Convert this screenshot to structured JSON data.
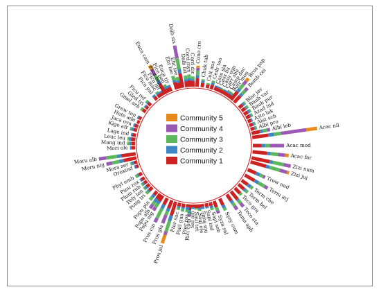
{
  "chart_data": {
    "type": "radial-stacked-bar",
    "title": "",
    "legend": {
      "placement": "center",
      "entries": [
        "Community 5",
        "Community 4",
        "Community 3",
        "Community 2",
        "Community 1"
      ]
    },
    "stack_order": [
      "Community 1",
      "Community 2",
      "Community 3",
      "Community 4",
      "Community 5"
    ],
    "colors": {
      "Community 5": "#e88a1a",
      "Community 4": "#9b59b6",
      "Community 3": "#5cb85c",
      "Community 2": "#3d85c6",
      "Community 1": "#cc2222"
    },
    "value_max": 1.0,
    "ring_color": "#cc2222",
    "categories": [
      {
        "label": "Acac nil",
        "angle": 82,
        "values": [
          0.22,
          0.08,
          0.1,
          0.35,
          0.15
        ]
      },
      {
        "label": "Acac mod",
        "angle": 90,
        "values": [
          0.12,
          0.05,
          0.06,
          0.2,
          0.0
        ]
      },
      {
        "label": "Acac far",
        "angle": 96,
        "values": [
          0.2,
          0.05,
          0.1,
          0.1,
          0.05
        ]
      },
      {
        "label": "Zizi num",
        "angle": 102,
        "values": [
          0.25,
          0.05,
          0.15,
          0.1,
          0.0
        ]
      },
      {
        "label": "Zizi juj",
        "angle": 106,
        "values": [
          0.22,
          0.05,
          0.15,
          0.1,
          0.03
        ]
      },
      {
        "label": "Trew nud",
        "angle": 114,
        "values": [
          0.12,
          0.06,
          0.05,
          0.03,
          0.0
        ]
      },
      {
        "label": "Term arj",
        "angle": 120,
        "values": [
          0.15,
          0.06,
          0.1,
          0.05,
          0.0
        ]
      },
      {
        "label": "Term che",
        "angle": 126,
        "values": [
          0.1,
          0.05,
          0.04,
          0.0,
          0.0
        ]
      },
      {
        "label": "Term bel",
        "angle": 131,
        "values": [
          0.1,
          0.03,
          0.04,
          0.0,
          0.0
        ]
      },
      {
        "label": "Teco gra",
        "angle": 136,
        "values": [
          0.1,
          0.0,
          0.03,
          0.0,
          0.0
        ]
      },
      {
        "label": "Teco sta",
        "angle": 141,
        "values": [
          0.14,
          0.02,
          0.05,
          0.06,
          0.0
        ]
      },
      {
        "label": "Tama aph",
        "angle": 146,
        "values": [
          0.1,
          0.04,
          0.05,
          0.06,
          0.0
        ]
      },
      {
        "label": "Syzy cum",
        "angle": 154,
        "values": [
          0.1,
          0.04,
          0.04,
          0.0,
          0.0
        ]
      },
      {
        "label": "Syza sal",
        "angle": 160,
        "values": [
          0.09,
          0.0,
          0.05,
          0.04,
          0.0
        ]
      },
      {
        "label": "Sapi seb",
        "angle": 164,
        "values": [
          0.05,
          0.03,
          0.03,
          0.0,
          0.0
        ]
      },
      {
        "label": "Sapi ind",
        "angle": 168,
        "values": [
          0.05,
          0.02,
          0.0,
          0.0,
          0.0
        ]
      },
      {
        "label": "Sima mu",
        "angle": 172,
        "values": [
          0.04,
          0.03,
          0.0,
          0.0,
          0.0
        ]
      },
      {
        "label": "Saul ole",
        "angle": 175,
        "values": [
          0.05,
          0.02,
          0.02,
          0.0,
          0.0
        ]
      },
      {
        "label": "Saul tet",
        "angle": 178,
        "values": [
          0.05,
          0.0,
          0.02,
          0.0,
          0.0
        ]
      },
      {
        "label": "Sal alb",
        "angle": 181,
        "values": [
          0.04,
          0.02,
          0.0,
          0.0,
          0.0
        ]
      },
      {
        "label": "Rici com",
        "angle": 184,
        "values": [
          0.08,
          0.04,
          0.02,
          0.03,
          0.0
        ]
      },
      {
        "label": "Psid gua",
        "angle": 190,
        "values": [
          0.05,
          0.02,
          0.04,
          0.0,
          0.0
        ]
      },
      {
        "label": "Pter ros",
        "angle": 186,
        "values": [
          0.04,
          0.04,
          0.03,
          0.0,
          0.0
        ]
      },
      {
        "label": "Pter suc",
        "angle": 194,
        "values": [
          0.05,
          0.02,
          0.03,
          0.0,
          0.0
        ]
      },
      {
        "label": "Pros jul",
        "angle": 198,
        "values": [
          0.2,
          0.08,
          0.15,
          0.05,
          0.12
        ]
      },
      {
        "label": "Pros gla",
        "angle": 202,
        "values": [
          0.12,
          0.04,
          0.06,
          0.12,
          0.0
        ]
      },
      {
        "label": "Pros cin",
        "angle": 207,
        "values": [
          0.1,
          0.06,
          0.15,
          0.06,
          0.0
        ]
      },
      {
        "label": "Popu nig",
        "angle": 212,
        "values": [
          0.09,
          0.04,
          0.06,
          0.05,
          0.0
        ]
      },
      {
        "label": "Popu alb",
        "angle": 215,
        "values": [
          0.08,
          0.05,
          0.05,
          0.06,
          0.0
        ]
      },
      {
        "label": "Popu pin",
        "angle": 219,
        "values": [
          0.06,
          0.04,
          0.05,
          0.0,
          0.0
        ]
      },
      {
        "label": "Pong tri",
        "angle": 225,
        "values": [
          0.06,
          0.02,
          0.04,
          0.0,
          0.0
        ]
      },
      {
        "label": "Poly lon",
        "angle": 229,
        "values": [
          0.05,
          0.03,
          0.02,
          0.0,
          0.0
        ]
      },
      {
        "label": "Plum rub",
        "angle": 233,
        "values": [
          0.05,
          0.02,
          0.02,
          0.0,
          0.0
        ]
      },
      {
        "label": "Pinu rox",
        "angle": 237,
        "values": [
          0.05,
          0.02,
          0.0,
          0.0,
          0.0
        ]
      },
      {
        "label": "Phyl emb",
        "angle": 242,
        "values": [
          0.05,
          0.02,
          0.03,
          0.0,
          0.0
        ]
      },
      {
        "label": "Oroxind",
        "angle": 250,
        "values": [
          0.04,
          0.02,
          0.0,
          0.0,
          0.0
        ]
      },
      {
        "label": "Mora ser",
        "angle": 254,
        "values": [
          0.05,
          0.03,
          0.02,
          0.0,
          0.0
        ]
      },
      {
        "label": "Moru nig",
        "angle": 258,
        "values": [
          0.18,
          0.06,
          0.1,
          0.08,
          0.0
        ]
      },
      {
        "label": "Moru alb",
        "angle": 262,
        "values": [
          0.2,
          0.06,
          0.15,
          0.1,
          0.0
        ]
      },
      {
        "label": "Mori ole",
        "angle": 268,
        "values": [
          0.05,
          0.02,
          0.0,
          0.0,
          0.0
        ]
      },
      {
        "label": "Mang ind",
        "angle": 272,
        "values": [
          0.05,
          0.03,
          0.03,
          0.0,
          0.0
        ]
      },
      {
        "label": "Leuc leu",
        "angle": 276,
        "values": [
          0.06,
          0.03,
          0.02,
          0.0,
          0.0
        ]
      },
      {
        "label": "Lage ind",
        "angle": 280,
        "values": [
          0.05,
          0.02,
          0.0,
          0.0,
          0.0
        ]
      },
      {
        "label": "Kige afr",
        "angle": 285,
        "values": [
          0.05,
          0.03,
          0.02,
          0.0,
          0.0
        ]
      },
      {
        "label": "Jaca ova",
        "angle": 289,
        "values": [
          0.05,
          0.02,
          0.0,
          0.0,
          0.0
        ]
      },
      {
        "label": "Hete ade",
        "angle": 293,
        "values": [
          0.04,
          0.0,
          0.0,
          0.0,
          0.0
        ]
      },
      {
        "label": "Grew ten",
        "angle": 297,
        "values": [
          0.04,
          0.02,
          0.0,
          0.0,
          0.0
        ]
      },
      {
        "label": "Gmel arb",
        "angle": 305,
        "values": [
          0.05,
          0.0,
          0.03,
          0.0,
          0.0
        ]
      },
      {
        "label": "Gled tri",
        "angle": 309,
        "values": [
          0.04,
          0.02,
          0.0,
          0.0,
          0.0
        ]
      },
      {
        "label": "Ficu ref",
        "angle": 313,
        "values": [
          0.05,
          0.02,
          0.02,
          0.0,
          0.0
        ]
      },
      {
        "label": "Ficu pal",
        "angle": 321,
        "values": [
          0.05,
          0.03,
          0.0,
          0.0,
          0.0
        ]
      },
      {
        "label": "Ficu mac",
        "angle": 325,
        "values": [
          0.05,
          0.02,
          0.02,
          0.0,
          0.0
        ]
      },
      {
        "label": "Ficu inf",
        "angle": 328,
        "values": [
          0.05,
          0.02,
          0.0,
          0.0,
          0.0
        ]
      },
      {
        "label": "Ficu ben",
        "angle": 331,
        "values": [
          0.06,
          0.03,
          0.02,
          0.0,
          0.0
        ]
      },
      {
        "label": "Fice ben",
        "angle": 334,
        "values": [
          0.06,
          0.03,
          0.03,
          0.0,
          0.0
        ]
      },
      {
        "label": "Euca tir",
        "angle": 337,
        "values": [
          0.06,
          0.03,
          0.0,
          0.0,
          0.0
        ]
      },
      {
        "label": "Euca cam",
        "angle": 331,
        "values": [
          0.16,
          0.05,
          0.08,
          0.1,
          0.06
        ]
      },
      {
        "label": "Ehr lae",
        "angle": 343,
        "values": [
          0.1,
          0.03,
          0.06,
          0.0,
          0.0
        ]
      },
      {
        "label": "Ehr lae",
        "angle": 346,
        "values": [
          0.08,
          0.03,
          0.05,
          0.0,
          0.0
        ]
      },
      {
        "label": "Dalb sis",
        "angle": 349,
        "values": [
          0.2,
          0.06,
          0.15,
          0.18,
          0.0
        ]
      },
      {
        "label": "Dalb lat",
        "angle": 353,
        "values": [
          0.08,
          0.03,
          0.05,
          0.0,
          0.0
        ]
      },
      {
        "label": "Cord myx",
        "angle": 356,
        "values": [
          0.09,
          0.03,
          0.05,
          0.0,
          0.0
        ]
      },
      {
        "label": "Cord dic",
        "angle": 359,
        "values": [
          0.08,
          0.02,
          0.04,
          0.0,
          0.0
        ]
      },
      {
        "label": "Cono cre",
        "angle": 3,
        "values": [
          0.12,
          0.04,
          0.06,
          0.04,
          0.03
        ]
      },
      {
        "label": "Chuk tab",
        "angle": 8,
        "values": [
          0.06,
          0.03,
          0.02,
          0.0,
          0.0
        ]
      },
      {
        "label": "Celt aus",
        "angle": 13,
        "values": [
          0.05,
          0.0,
          0.02,
          0.0,
          0.0
        ]
      },
      {
        "label": "Cedr too",
        "angle": 17,
        "values": [
          0.06,
          0.03,
          0.03,
          0.0,
          0.0
        ]
      },
      {
        "label": "Cass sia",
        "angle": 21,
        "values": [
          0.05,
          0.02,
          0.0,
          0.0,
          0.0
        ]
      },
      {
        "label": "Cass fis",
        "angle": 24,
        "values": [
          0.05,
          0.02,
          0.0,
          0.0,
          0.0
        ]
      },
      {
        "label": "Casu equ",
        "angle": 27,
        "values": [
          0.05,
          0.0,
          0.02,
          0.0,
          0.0
        ]
      },
      {
        "label": "Carr she",
        "angle": 30,
        "values": [
          0.05,
          0.02,
          0.0,
          0.0,
          0.0
        ]
      },
      {
        "label": "Camp dec",
        "angle": 33,
        "values": [
          0.05,
          0.02,
          0.02,
          0.0,
          0.0
        ]
      },
      {
        "label": "Butr mon",
        "angle": 36,
        "values": [
          0.05,
          0.02,
          0.02,
          0.0,
          0.0
        ]
      },
      {
        "label": "Bros pap",
        "angle": 39,
        "values": [
          0.14,
          0.05,
          0.08,
          0.06,
          0.05
        ]
      },
      {
        "label": "Bomb cei",
        "angle": 43,
        "values": [
          0.12,
          0.04,
          0.06,
          0.05,
          0.0
        ]
      },
      {
        "label": "Blse jav",
        "angle": 50,
        "values": [
          0.06,
          0.03,
          0.02,
          0.0,
          0.0
        ]
      },
      {
        "label": "Bauh var",
        "angle": 54,
        "values": [
          0.06,
          0.02,
          0.03,
          0.0,
          0.0
        ]
      },
      {
        "label": "Bauh pur",
        "angle": 58,
        "values": [
          0.06,
          0.03,
          0.02,
          0.0,
          0.0
        ]
      },
      {
        "label": "Azad ind",
        "angle": 62,
        "values": [
          0.06,
          0.02,
          0.02,
          0.0,
          0.0
        ]
      },
      {
        "label": "Asto lak",
        "angle": 66,
        "values": [
          0.05,
          0.02,
          0.0,
          0.0,
          0.0
        ]
      },
      {
        "label": "Alst sch",
        "angle": 70,
        "values": [
          0.05,
          0.02,
          0.02,
          0.0,
          0.0
        ]
      },
      {
        "label": "Albi pro",
        "angle": 74,
        "values": [
          0.05,
          0.02,
          0.02,
          0.0,
          0.0
        ]
      },
      {
        "label": "Albi leb",
        "angle": 78,
        "values": [
          0.12,
          0.04,
          0.06,
          0.04,
          0.0
        ]
      }
    ]
  }
}
